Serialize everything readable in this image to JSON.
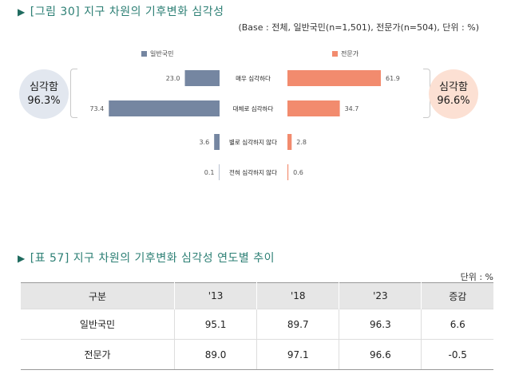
{
  "figure": {
    "marker": "▶",
    "title": "[그림 30] 지구 차원의 기후변화 심각성",
    "note": "(Base : 전체, 일반국민(n=1,501), 전문가(n=504), 단위 : %)"
  },
  "summary": {
    "left": {
      "label": "심각함",
      "value": "96.3%"
    },
    "right": {
      "label": "심각함",
      "value": "96.6%"
    }
  },
  "colors": {
    "general": "#7586a1",
    "expert": "#f28b6e"
  },
  "chart_data": {
    "type": "bar",
    "orientation": "horizontal-diverging",
    "categories": [
      "매우 심각하다",
      "대체로 심각하다",
      "별로 심각하지 않다",
      "전혀 심각하지 않다"
    ],
    "series": [
      {
        "name": "일반국민",
        "values": [
          23.0,
          73.4,
          3.6,
          0.1
        ],
        "labels": [
          "23.0",
          "73.4",
          "3.6",
          "0.1"
        ],
        "side": "left"
      },
      {
        "name": "전문가",
        "values": [
          61.9,
          34.7,
          2.8,
          0.6
        ],
        "labels": [
          "61.9",
          "34.7",
          "2.8",
          "0.6"
        ],
        "side": "right"
      }
    ],
    "legend_position": "top",
    "grid": false
  },
  "table": {
    "marker": "▶",
    "title": "[표 57] 지구 차원의 기후변화 심각성 연도별 추이",
    "unit": "단위 : %",
    "headers": [
      "구분",
      "'13",
      "'18",
      "'23",
      "증감"
    ],
    "rows": [
      [
        "일반국민",
        "95.1",
        "89.7",
        "96.3",
        "6.6"
      ],
      [
        "전문가",
        "89.0",
        "97.1",
        "96.6",
        "-0.5"
      ]
    ]
  }
}
